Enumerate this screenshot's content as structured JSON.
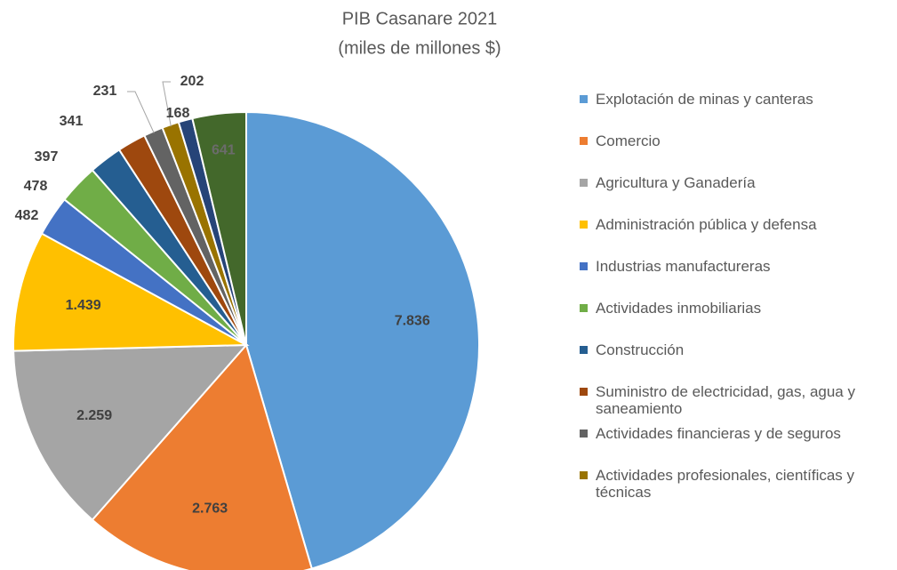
{
  "chart_data": {
    "type": "pie",
    "title": "PIB Casanare 2021",
    "subtitle": "(miles de millones $)",
    "categories": [
      "Explotación de minas y canteras",
      "Comercio",
      "Agricultura y Ganadería",
      "Administración pública y defensa",
      "Industrias manufactureras",
      "Actividades inmobiliarias",
      "Construcción",
      "Suministro de electricidad, gas, agua y saneamiento",
      "Actividades financieras y de seguros",
      "Actividades profesionales, científicas y técnicas",
      null,
      null
    ],
    "values": [
      7836,
      2763,
      2259,
      1439,
      482,
      478,
      397,
      341,
      231,
      202,
      168,
      641
    ],
    "value_labels": [
      "7.836",
      "2.763",
      "2.259",
      "1.439",
      "482",
      "478",
      "397",
      "341",
      "231",
      "202",
      "168",
      "641"
    ],
    "colors": [
      "#5b9bd5",
      "#ed7d31",
      "#a5a5a5",
      "#ffc000",
      "#4472c4",
      "#70ad47",
      "#255e91",
      "#9e480e",
      "#636363",
      "#997300",
      "#264478",
      "#43682b"
    ],
    "legend": "right"
  }
}
